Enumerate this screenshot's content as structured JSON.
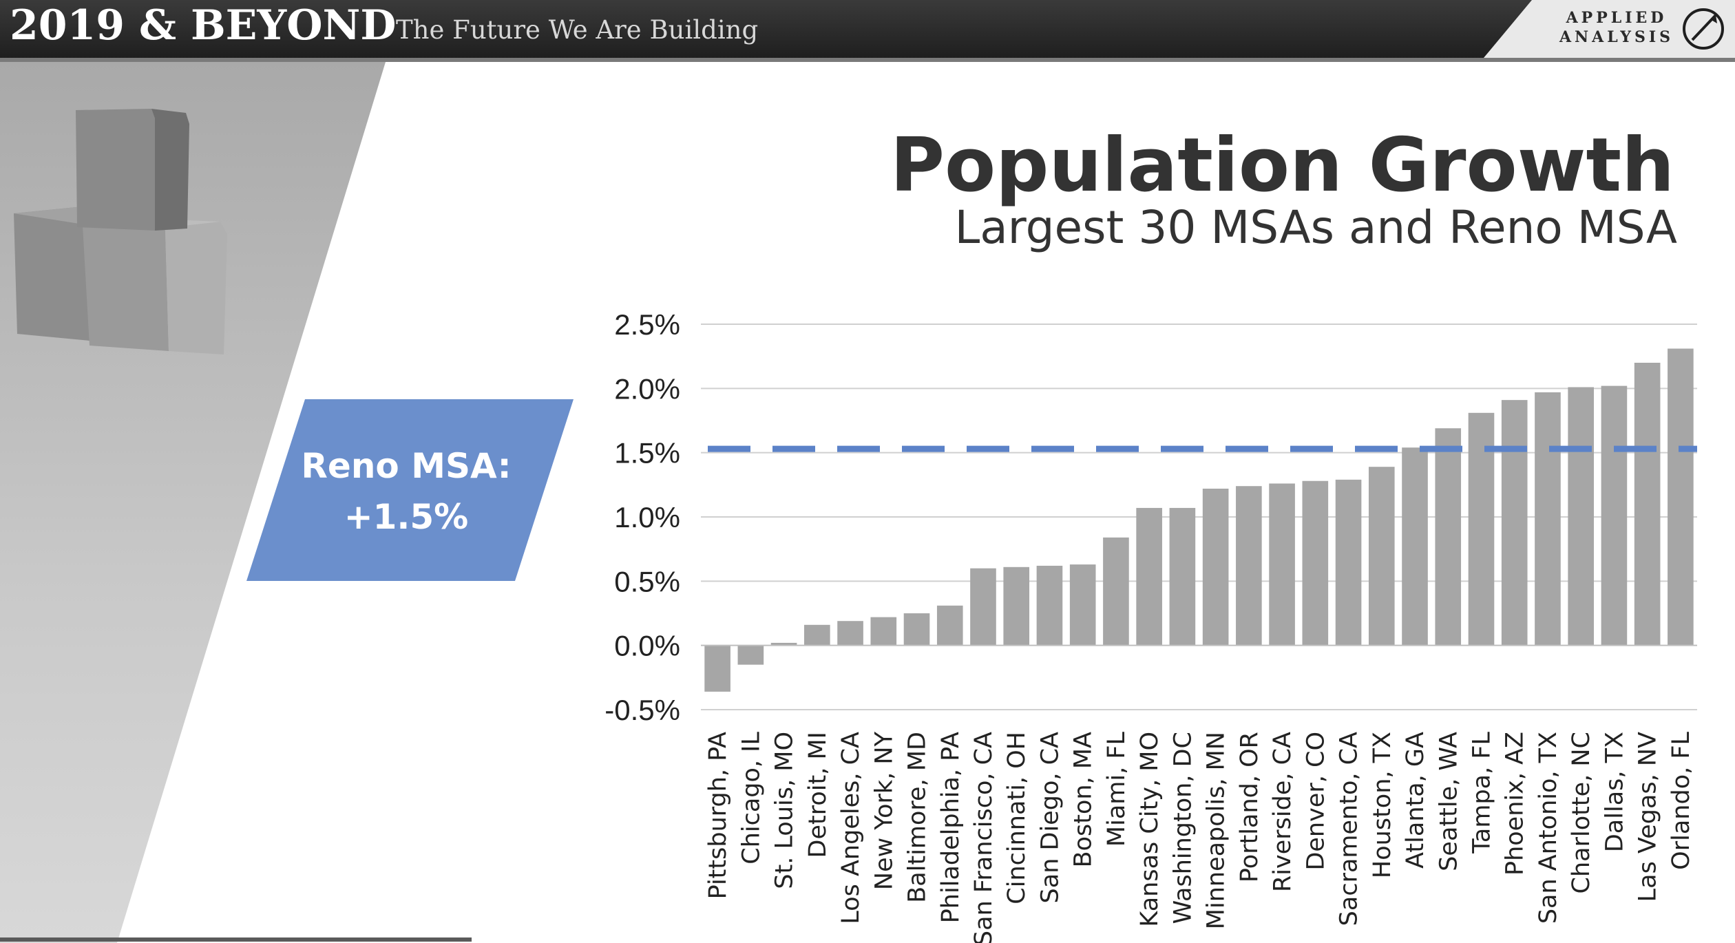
{
  "header": {
    "brand_main": "2019 & BEYOND",
    "brand_sub": "The Future We Are Building",
    "logo_line1": "APPLIED",
    "logo_line2": "ANALYSIS"
  },
  "callout": {
    "label": "Reno MSA:",
    "value": "+1.5%"
  },
  "colors": {
    "bar": "#a6a6a6",
    "reference_line": "#5b82c8",
    "callout_fill": "#6b8fcc",
    "header": "#2a2a2a"
  },
  "chart_data": {
    "type": "bar",
    "title": "Population Growth",
    "subtitle": "Largest 30 MSAs and Reno MSA",
    "xlabel": "",
    "ylabel": "",
    "ylim": [
      -0.5,
      2.5
    ],
    "yticks": [
      -0.5,
      0.0,
      0.5,
      1.0,
      1.5,
      2.0,
      2.5
    ],
    "ytick_labels": [
      "-0.5%",
      "0.0%",
      "0.5%",
      "1.0%",
      "1.5%",
      "2.0%",
      "2.5%"
    ],
    "grid": true,
    "legend": "none",
    "categories": [
      "Pittsburgh, PA",
      "Chicago, IL",
      "St. Louis, MO",
      "Detroit, MI",
      "Los Angeles, CA",
      "New York, NY",
      "Baltimore, MD",
      "Philadelphia, PA",
      "San Francisco, CA",
      "Cincinnati, OH",
      "San Diego, CA",
      "Boston, MA",
      "Miami, FL",
      "Kansas City, MO",
      "Washington, DC",
      "Minneapolis, MN",
      "Portland, OR",
      "Riverside, CA",
      "Denver, CO",
      "Sacramento, CA",
      "Houston, TX",
      "Atlanta, GA",
      "Seattle, WA",
      "Tampa, FL",
      "Phoenix, AZ",
      "San Antonio, TX",
      "Charlotte, NC",
      "Dallas, TX",
      "Las Vegas, NV",
      "Orlando, FL"
    ],
    "values": [
      -0.36,
      -0.15,
      0.02,
      0.16,
      0.19,
      0.22,
      0.25,
      0.31,
      0.6,
      0.61,
      0.62,
      0.63,
      0.84,
      1.07,
      1.07,
      1.22,
      1.24,
      1.26,
      1.28,
      1.29,
      1.39,
      1.54,
      1.69,
      1.81,
      1.91,
      1.97,
      2.01,
      2.02,
      2.2,
      2.31
    ],
    "reference_line": {
      "value": 1.53,
      "style": "dashed"
    }
  }
}
